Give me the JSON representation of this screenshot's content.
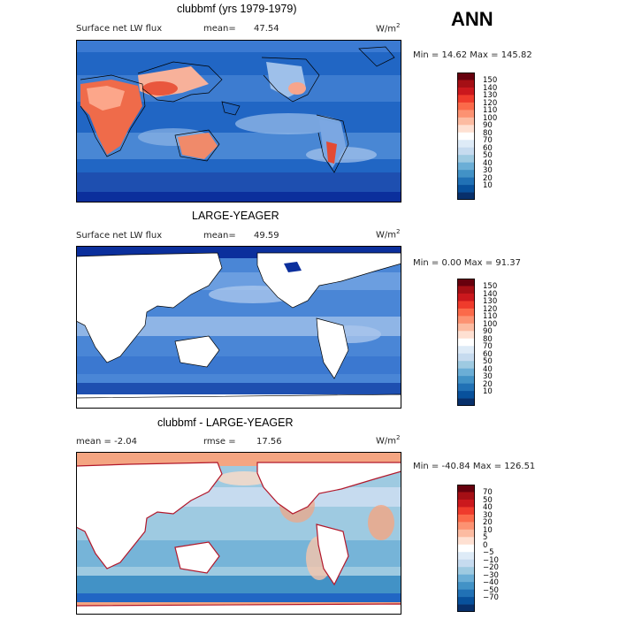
{
  "season": "ANN",
  "panels": [
    {
      "title": "clubbmf (yrs 1979-1979)",
      "field_label": "Surface net LW flux",
      "stat_label": "mean=",
      "stat_value": "47.54",
      "units_main": "W/m",
      "units_exp": "2",
      "range_text": "Min =  14.62 Max = 145.82",
      "colorbar_labels": [
        "150",
        "140",
        "130",
        "120",
        "110",
        "100",
        "90",
        "80",
        "70",
        "60",
        "50",
        "40",
        "30",
        "20",
        "10"
      ]
    },
    {
      "title": "LARGE-YEAGER",
      "field_label": "Surface net LW flux",
      "stat_label": "mean=",
      "stat_value": "49.59",
      "units_main": "W/m",
      "units_exp": "2",
      "range_text": "Min =   0.00 Max =  91.37",
      "colorbar_labels": [
        "150",
        "140",
        "130",
        "120",
        "110",
        "100",
        "90",
        "80",
        "70",
        "60",
        "50",
        "40",
        "30",
        "20",
        "10"
      ]
    },
    {
      "title": "clubbmf - LARGE-YEAGER",
      "field_label": "mean =  -2.04",
      "stat_label": "rmse =",
      "stat_value": "17.56",
      "units_main": "W/m",
      "units_exp": "2",
      "range_text": "Min = -40.84 Max = 126.51",
      "colorbar_labels": [
        "70",
        "50",
        "40",
        "30",
        "20",
        "10",
        "5",
        "0",
        "−5",
        "−10",
        "−20",
        "−30",
        "−40",
        "−50",
        "−70"
      ]
    }
  ],
  "colors": {
    "abs_scale": [
      "#67000d",
      "#a50f15",
      "#cb181d",
      "#ef3b2c",
      "#fb6a4a",
      "#fc9272",
      "#fcbba1",
      "#fee0d2",
      "#ffffff",
      "#deebf7",
      "#c6dbef",
      "#9ecae1",
      "#6baed6",
      "#4292c6",
      "#2171b5",
      "#08519c",
      "#08306b"
    ],
    "diff_scale": [
      "#67000d",
      "#a50f15",
      "#cb181d",
      "#ef3b2c",
      "#fb6a4a",
      "#fc9272",
      "#fcbba1",
      "#fee0d2",
      "#ffffff",
      "#deebf7",
      "#c6dbef",
      "#9ecae1",
      "#6baed6",
      "#4292c6",
      "#2171b5",
      "#08519c",
      "#08306b"
    ]
  }
}
